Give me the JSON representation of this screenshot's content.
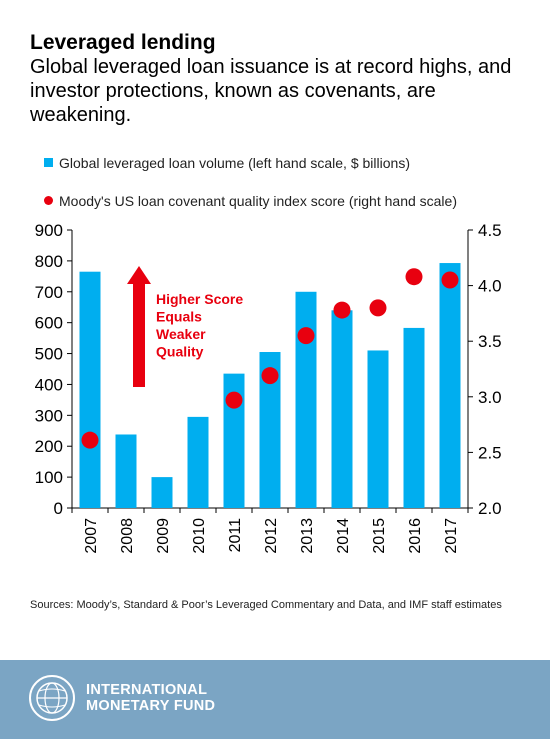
{
  "header": {
    "title": "Leveraged lending",
    "subtitle": "Global leveraged loan issuance is at record highs, and investor protections, known as covenants, are weakening."
  },
  "colors": {
    "bar": "#00aeef",
    "dot": "#e8000f",
    "annotation": "#e8000f",
    "footer": "#7ba5c4"
  },
  "chart_data": {
    "type": "bar",
    "categories": [
      "2007",
      "2008",
      "2009",
      "2010",
      "2011",
      "2012",
      "2013",
      "2014",
      "2015",
      "2016",
      "2017"
    ],
    "series": [
      {
        "name": "Global leveraged loan volume (left hand scale, $ billions)",
        "type": "bar",
        "axis": "left",
        "values": [
          765,
          238,
          100,
          295,
          435,
          505,
          700,
          640,
          510,
          583,
          793
        ]
      },
      {
        "name": "Moody's US loan covenant quality index score (right hand scale)",
        "type": "scatter",
        "axis": "right",
        "values": [
          2.61,
          null,
          null,
          null,
          2.97,
          3.19,
          3.55,
          3.78,
          3.8,
          4.08,
          4.05
        ]
      }
    ],
    "ylim_left": [
      0,
      900
    ],
    "yticks_left": [
      "0",
      "100",
      "200",
      "300",
      "400",
      "500",
      "600",
      "700",
      "800",
      "900"
    ],
    "ylim_right": [
      2.0,
      4.5
    ],
    "yticks_right": [
      "2.0",
      "2.5",
      "3.0",
      "3.5",
      "4.0",
      "4.5"
    ],
    "legend_position": "top",
    "grid": false,
    "annotation": {
      "lines": [
        "Higher Score",
        "Equals",
        "Weaker",
        "Quality"
      ],
      "arrow": "up"
    }
  },
  "sources": "Sources:  Moody’s, Standard & Poor’s Leveraged Commentary and Data, and IMF staff estimates",
  "footer": {
    "org_line1": "INTERNATIONAL",
    "org_line2": "MONETARY FUND"
  }
}
